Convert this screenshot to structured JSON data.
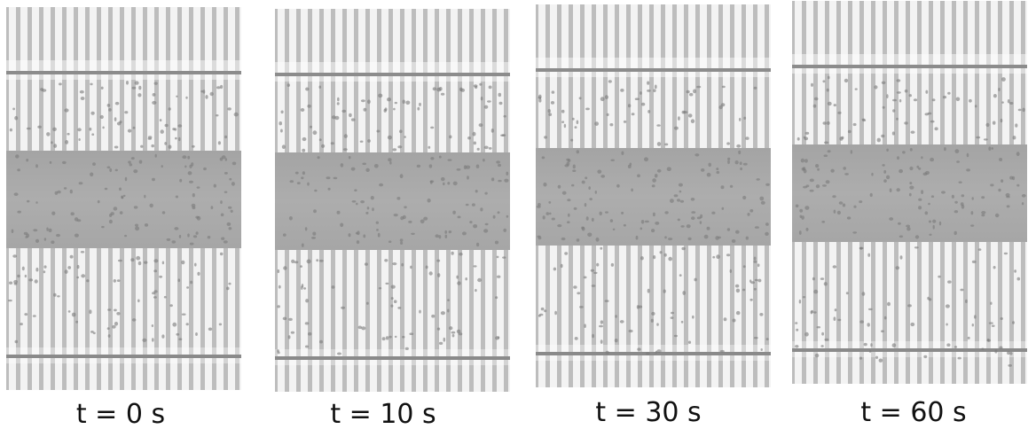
{
  "panels": [
    {
      "caption": "t = 0 s"
    },
    {
      "caption": "t = 10 s"
    },
    {
      "caption": "t = 30 s"
    },
    {
      "caption": "t = 60 s"
    }
  ]
}
